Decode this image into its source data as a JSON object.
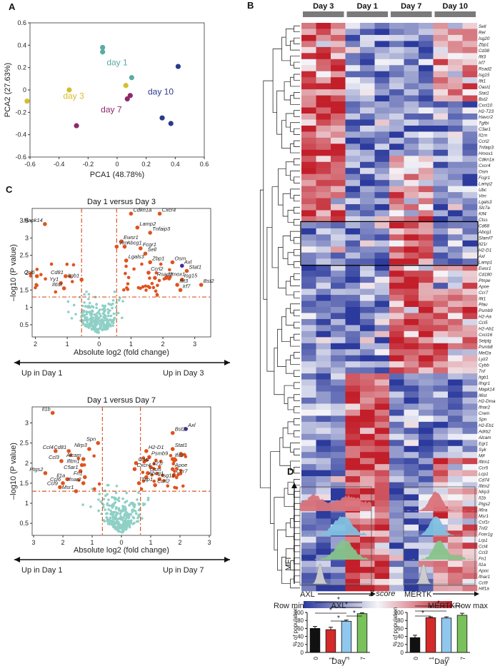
{
  "panels": {
    "A": "A",
    "B": "B",
    "C": "C",
    "D": "D"
  },
  "chart_data": [
    {
      "id": "pca",
      "type": "scatter",
      "xlabel": "PCA1 (48.78%)",
      "ylabel": "PCA2 (27.63%)",
      "xlim": [
        -0.6,
        0.6
      ],
      "ylim": [
        -0.6,
        0.6
      ],
      "xticks": [
        "-0.6",
        "-0.4",
        "-0.2",
        "0",
        "0.2",
        "0.4",
        "0.6"
      ],
      "yticks": [
        "-0.6",
        "-0.4",
        "-0.2",
        "0",
        "0.2",
        "0.4",
        "0.6"
      ],
      "groups": [
        {
          "name": "day 1",
          "color": "#5aaca3",
          "points": [
            [
              -0.1,
              0.38
            ],
            [
              -0.1,
              0.34
            ],
            [
              0.1,
              0.11
            ]
          ]
        },
        {
          "name": "day 3",
          "color": "#d6bd2e",
          "points": [
            [
              -0.62,
              -0.1
            ],
            [
              -0.33,
              0.0
            ],
            [
              0.06,
              0.04
            ]
          ]
        },
        {
          "name": "day 7",
          "color": "#8a2a6e",
          "points": [
            [
              -0.28,
              -0.32
            ],
            [
              0.09,
              -0.05
            ],
            [
              0.07,
              -0.08
            ]
          ]
        },
        {
          "name": "day 10",
          "color": "#2b3a8c",
          "points": [
            [
              0.42,
              0.21
            ],
            [
              0.31,
              -0.25
            ],
            [
              0.37,
              -0.3
            ]
          ]
        }
      ],
      "labels": [
        {
          "text": "day 1",
          "color": "#5aaca3",
          "x": 0.0,
          "y": 0.22
        },
        {
          "text": "day 3",
          "color": "#d6bd2e",
          "x": -0.3,
          "y": -0.08
        },
        {
          "text": "day 7",
          "color": "#8a2a6e",
          "x": -0.04,
          "y": -0.2
        },
        {
          "text": "day 10",
          "color": "#2b3a8c",
          "x": 0.3,
          "y": -0.04
        }
      ]
    },
    {
      "id": "heatmap",
      "type": "heatmap",
      "groups": [
        "Day 3",
        "Day 1",
        "Day 7",
        "Day 10"
      ],
      "genes": [
        "Sell",
        "Rel",
        "Isg20",
        "Zbp1",
        "Cd38",
        "Ifit3",
        "Irf7",
        "Rsad2",
        "Isg15",
        "Ifit1",
        "Oasl1",
        "Stat1",
        "Bst2",
        "Cxcl10",
        "H2-T23",
        "Havcr2",
        "Tgfbi",
        "C3ar1",
        "Il1rn",
        "Ccrl2",
        "Tnfaip3",
        "Hmox1",
        "Cdkn1a",
        "Cxcr4",
        "Osm",
        "Fcgr1",
        "Lamp2",
        "Ubc",
        "Vim",
        "Lgals3",
        "Slc7a",
        "Klf4",
        "Ctss",
        "Cd68",
        "Abcg1",
        "Slamf7",
        "Il21r",
        "H2-D1",
        "Axl",
        "Lamp1",
        "Ewsr1",
        "Cd180",
        "Ptnpe",
        "Apoe",
        "Ccr7",
        "Ifit1",
        "Plau",
        "Psmb9",
        "H2-Aa",
        "Ccl5",
        "H2-Ab1",
        "Cxcl16",
        "Selplg",
        "Psmb8",
        "Mef2a",
        "Lyz2",
        "Cybb",
        "Tnf",
        "Itgb1",
        "Ifngr1",
        "Mapk14",
        "Il6st",
        "H2-Dma",
        "Ifnar2",
        "Crem",
        "Spn",
        "H2-Eb1",
        "Adrb2",
        "Alcam",
        "Egr1",
        "Syk",
        "Mif",
        "Ifitm1",
        "Ccr5",
        "Lcp1",
        "Cd74",
        "Ifitm2",
        "Nlrp3",
        "Il1b",
        "Ptgs2",
        "Il6ra",
        "Msr1",
        "Csf1r",
        "Tnf2",
        "Fcer1g",
        "Lrp1",
        "Ccl4",
        "Ccl3",
        "Fn1",
        "Il1a",
        "Apoc",
        "Ifnar1",
        "Ccl9",
        "Hif1a"
      ],
      "box_genes": [
        "Cd68",
        "Abcg1",
        "Slamf7",
        "Il21r",
        "H2-D1",
        "Axl",
        "Lamp1"
      ],
      "zlabel": "Z score",
      "legend_min": "Row min",
      "legend_max": "Row max"
    },
    {
      "id": "volcano1",
      "type": "scatter",
      "title": "Day 1 versus Day 3",
      "xlabel": "Absolute log2 (fold change)",
      "ylabel": "–log10 (P value)",
      "xticks": [
        "2",
        "1",
        "0",
        "1",
        "2",
        "3"
      ],
      "yticks": [
        "0.5",
        "1",
        "1.5",
        "2",
        "2.5",
        "3",
        "3.5"
      ],
      "left_arrow": "Up in Day 1",
      "right_arrow": "Up in Day 3",
      "highlight": [
        {
          "gene": "Cdkn1a",
          "x": 1.0,
          "y": 3.7
        },
        {
          "gene": "Cxcr4",
          "x": 1.9,
          "y": 3.7
        },
        {
          "gene": "Mapk14",
          "x": -1.7,
          "y": 3.4
        },
        {
          "gene": "Lamp2",
          "x": 1.2,
          "y": 3.3
        },
        {
          "gene": "Tnfaip3",
          "x": 1.6,
          "y": 3.15
        },
        {
          "gene": "Ewsr1",
          "x": 0.7,
          "y": 2.9
        },
        {
          "gene": "Vim",
          "x": 0.55,
          "y": 2.75
        },
        {
          "gene": "Abcg1",
          "x": 0.8,
          "y": 2.75
        },
        {
          "gene": "Fcgr1",
          "x": 1.3,
          "y": 2.7
        },
        {
          "gene": "Sell",
          "x": 1.45,
          "y": 2.55
        },
        {
          "gene": "Lgals3",
          "x": 0.85,
          "y": 2.35
        },
        {
          "gene": "Zbp1",
          "x": 1.6,
          "y": 2.3
        },
        {
          "gene": "Osm",
          "x": 2.3,
          "y": 2.3
        },
        {
          "gene": "Axl",
          "x": 2.6,
          "y": 2.2
        },
        {
          "gene": "Stat1",
          "x": 2.75,
          "y": 2.05
        },
        {
          "gene": "Ccrl2",
          "x": 1.55,
          "y": 2.0
        },
        {
          "gene": "Rsad2",
          "x": 1.75,
          "y": 1.85
        },
        {
          "gene": "Hmox1",
          "x": 2.1,
          "y": 1.85
        },
        {
          "gene": "Isg15",
          "x": 2.6,
          "y": 1.8
        },
        {
          "gene": "Ifit3",
          "x": 2.45,
          "y": 1.65
        },
        {
          "gene": "Bst2",
          "x": 3.2,
          "y": 1.65
        },
        {
          "gene": "Irf7",
          "x": 2.55,
          "y": 1.5
        },
        {
          "gene": "Ccl6",
          "x": -1.95,
          "y": 1.9
        },
        {
          "gene": "Cd81",
          "x": -1.05,
          "y": 1.9
        },
        {
          "gene": "Itgb1",
          "x": -0.55,
          "y": 1.8
        },
        {
          "gene": "Yy1",
          "x": -1.2,
          "y": 1.7
        },
        {
          "gene": "Il6st",
          "x": -1.1,
          "y": 1.55
        }
      ]
    },
    {
      "id": "volcano2",
      "type": "scatter",
      "title": "Day 1 versus Day 7",
      "xlabel": "Absolute log2 (fold change)",
      "ylabel": "–log10 (P value)",
      "xticks": [
        "3",
        "2",
        "1",
        "0",
        "1",
        "2",
        "3"
      ],
      "yticks": [
        "0.5",
        "1",
        "1.5",
        "2",
        "2.5",
        "3"
      ],
      "left_arrow": "Up in Day 1",
      "right_arrow": "Up in Day 7",
      "highlight": [
        {
          "gene": "Il1b",
          "x": -2.35,
          "y": 3.25
        },
        {
          "gene": "Axl",
          "x": 2.2,
          "y": 2.85
        },
        {
          "gene": "Bst2",
          "x": 1.75,
          "y": 2.75
        },
        {
          "gene": "Spn",
          "x": -0.8,
          "y": 2.5
        },
        {
          "gene": "Nlrp3",
          "x": -1.1,
          "y": 2.35
        },
        {
          "gene": "Stat1",
          "x": 1.75,
          "y": 2.35
        },
        {
          "gene": "H2-D1",
          "x": 0.85,
          "y": 2.3
        },
        {
          "gene": "Psmb9",
          "x": 0.95,
          "y": 2.15
        },
        {
          "gene": "Ifit3",
          "x": 1.75,
          "y": 2.1
        },
        {
          "gene": "Ccl4",
          "x": -2.25,
          "y": 2.3
        },
        {
          "gene": "Cd81",
          "x": -1.8,
          "y": 2.3
        },
        {
          "gene": "Ccl3",
          "x": -2.05,
          "y": 2.05
        },
        {
          "gene": "Alcam",
          "x": -1.3,
          "y": 2.1
        },
        {
          "gene": "Ifitm1",
          "x": -1.35,
          "y": 1.95
        },
        {
          "gene": "Oasl",
          "x": 0.5,
          "y": 2.0
        },
        {
          "gene": "Il21r",
          "x": 1.0,
          "y": 1.9
        },
        {
          "gene": "Cxcr4",
          "x": 0.45,
          "y": 1.85
        },
        {
          "gene": "Apoe",
          "x": 1.75,
          "y": 1.85
        },
        {
          "gene": "Osm",
          "x": 0.9,
          "y": 1.75
        },
        {
          "gene": "C5ar1",
          "x": -1.4,
          "y": 1.8
        },
        {
          "gene": "Ptgs2",
          "x": -2.6,
          "y": 1.75
        },
        {
          "gene": "Ccr7",
          "x": 1.8,
          "y": 1.7
        },
        {
          "gene": "Fn1",
          "x": -1.25,
          "y": 1.65
        },
        {
          "gene": "Abcg1",
          "x": 0.85,
          "y": 1.65
        },
        {
          "gene": "Isg15",
          "x": 1.3,
          "y": 1.6
        },
        {
          "gene": "Il1a",
          "x": -1.85,
          "y": 1.6
        },
        {
          "gene": "Ifnar2",
          "x": -1.3,
          "y": 1.5
        },
        {
          "gene": "Ccl6",
          "x": -2.0,
          "y": 1.5
        },
        {
          "gene": "Tap1",
          "x": 0.6,
          "y": 1.5
        },
        {
          "gene": "Ccrl2",
          "x": 1.15,
          "y": 1.45
        },
        {
          "gene": "Ccl9",
          "x": -2.1,
          "y": 1.4
        },
        {
          "gene": "Msr1",
          "x": -1.55,
          "y": 1.3
        }
      ]
    },
    {
      "id": "facs",
      "type": "area",
      "ylabel": "MFI",
      "plots": [
        "AXL",
        "MERTK"
      ],
      "layer_colors": [
        "#d9737a",
        "#7fc0e0",
        "#86c48a",
        "#cfcfcf"
      ]
    },
    {
      "id": "bar_axl",
      "type": "bar",
      "title": "AXL",
      "xlabel": "Day",
      "ylabel": "% of population",
      "categories": [
        "0",
        "1",
        "3",
        "7"
      ],
      "values": [
        60,
        57,
        78,
        97
      ],
      "errors": [
        5,
        6,
        3,
        2
      ],
      "colors": [
        "#111111",
        "#d42a2a",
        "#8fc7ee",
        "#79c15a"
      ],
      "ylim": [
        0,
        100
      ],
      "yticks": [
        "0",
        "20",
        "40",
        "60",
        "80",
        "100"
      ],
      "sig": [
        "*",
        "*",
        "*",
        "*",
        "*"
      ]
    },
    {
      "id": "bar_mertk",
      "type": "bar",
      "title": "MERTK",
      "xlabel": "Day",
      "ylabel": "% of population",
      "categories": [
        "0",
        "1",
        "3",
        "7"
      ],
      "values": [
        37,
        87,
        86,
        93
      ],
      "errors": [
        6,
        2,
        3,
        5
      ],
      "colors": [
        "#111111",
        "#d42a2a",
        "#8fc7ee",
        "#79c15a"
      ],
      "ylim": [
        0,
        100
      ],
      "yticks": [
        "0",
        "20",
        "40",
        "60",
        "80",
        "100"
      ],
      "sig": [
        "*",
        "*",
        "*"
      ]
    }
  ]
}
